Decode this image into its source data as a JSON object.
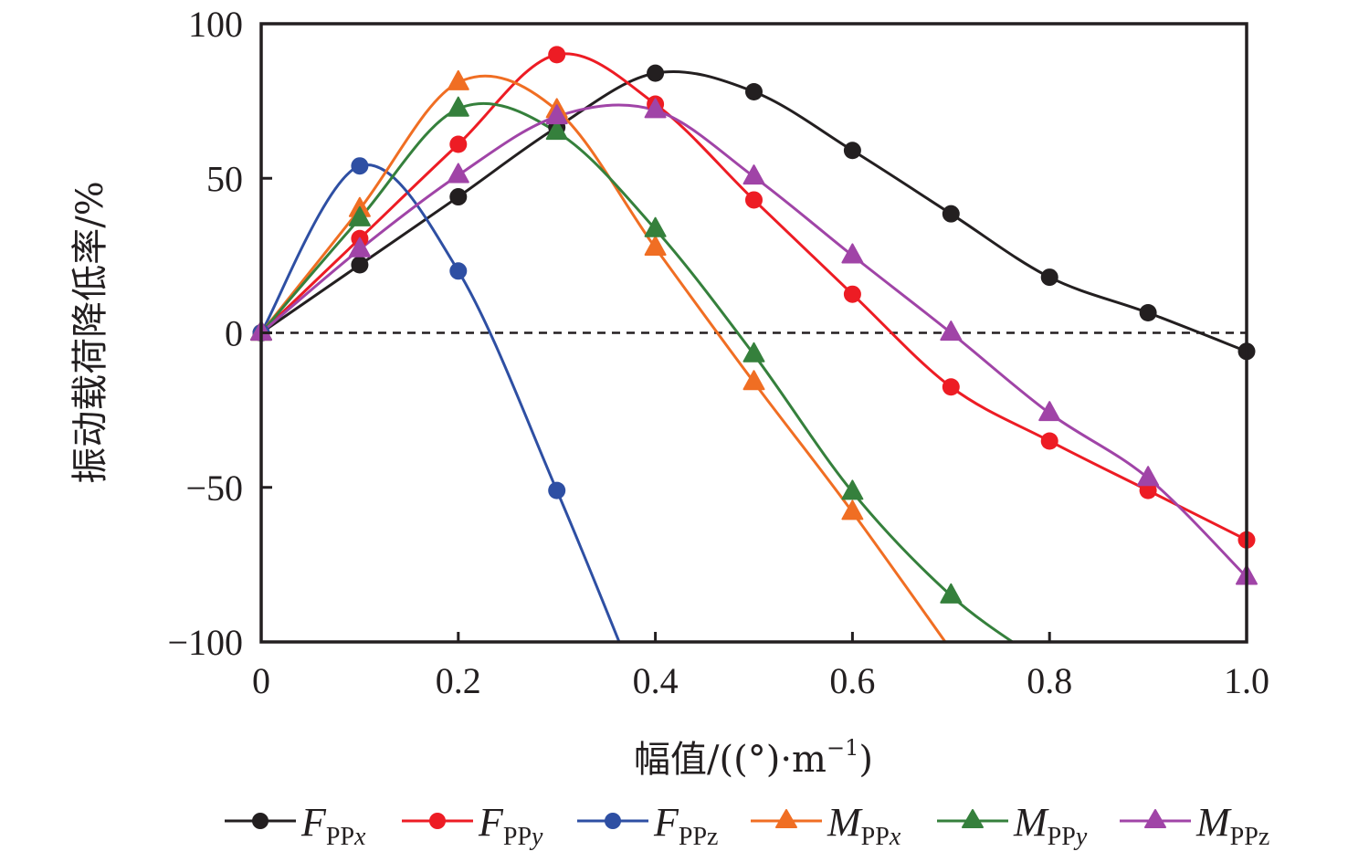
{
  "chart_data": {
    "type": "line",
    "title": "",
    "xlabel": "幅值/((°)·m⁻¹)",
    "xlabel_parts": {
      "text": "幅值/((°)·m",
      "sup": "−1",
      "close": ")"
    },
    "ylabel": "振动载荷降低率/%",
    "xlim": [
      0,
      1.0
    ],
    "ylim": [
      -100,
      100
    ],
    "xticks": [
      0,
      0.2,
      0.4,
      0.6,
      0.8,
      1.0
    ],
    "xtick_labels": [
      "0",
      "0.2",
      "0.4",
      "0.6",
      "0.8",
      "1.0"
    ],
    "yticks": [
      -100,
      -50,
      0,
      50,
      100
    ],
    "ytick_labels": [
      "−100",
      "−50",
      "0",
      "50",
      "100"
    ],
    "grid": false,
    "reference_line": {
      "y": 0,
      "style": "dashed",
      "color": "#231f20"
    },
    "legend_position": "bottom",
    "smooth": true,
    "series": [
      {
        "name": "F_PPx",
        "label_main": "F",
        "label_sub": "PP",
        "label_axis": "x",
        "axis_italic": true,
        "color": "#231f20",
        "marker": "circle",
        "x": [
          0,
          0.1,
          0.2,
          0.3,
          0.4,
          0.5,
          0.6,
          0.7,
          0.8,
          0.9,
          1.0
        ],
        "y": [
          0,
          22,
          44,
          66.5,
          84,
          78,
          59,
          38.5,
          18,
          6.5,
          -6
        ]
      },
      {
        "name": "F_PPy",
        "label_main": "F",
        "label_sub": "PP",
        "label_axis": "y",
        "axis_italic": true,
        "color": "#ed1c24",
        "marker": "circle",
        "x": [
          0,
          0.1,
          0.2,
          0.3,
          0.4,
          0.5,
          0.6,
          0.7,
          0.8,
          0.9,
          1.0
        ],
        "y": [
          0,
          30.5,
          61,
          90,
          74,
          43,
          12.5,
          -17.5,
          -35,
          -51,
          -67
        ]
      },
      {
        "name": "F_PPz",
        "label_main": "F",
        "label_sub": "PP",
        "label_axis": "z",
        "axis_italic": false,
        "color": "#2e4fa3",
        "marker": "circle",
        "x": [
          0,
          0.1,
          0.2,
          0.3
        ],
        "y": [
          0,
          54,
          20,
          -51
        ],
        "exits_bottom_at_x": 0.363
      },
      {
        "name": "M_PPx",
        "label_main": "M",
        "label_sub": "PP",
        "label_axis": "x",
        "axis_italic": true,
        "color": "#f06e23",
        "marker": "triangle",
        "x": [
          0,
          0.1,
          0.2,
          0.3,
          0.4,
          0.5,
          0.6
        ],
        "y": [
          0,
          40,
          81,
          72,
          27.5,
          -16,
          -58
        ],
        "exits_bottom_at_x": 0.694
      },
      {
        "name": "M_PPy",
        "label_main": "M",
        "label_sub": "PP",
        "label_axis": "y",
        "axis_italic": true,
        "color": "#35803c",
        "marker": "triangle",
        "x": [
          0,
          0.1,
          0.2,
          0.3,
          0.4,
          0.5,
          0.6,
          0.7
        ],
        "y": [
          0,
          37,
          72.5,
          65,
          33.5,
          -7,
          -51.5,
          -85
        ],
        "exits_bottom_at_x": 0.764
      },
      {
        "name": "M_PPz",
        "label_main": "M",
        "label_sub": "PP",
        "label_axis": "z",
        "axis_italic": false,
        "color": "#a044a7",
        "marker": "triangle",
        "x": [
          0,
          0.1,
          0.2,
          0.3,
          0.4,
          0.5,
          0.6,
          0.7,
          0.8,
          0.9,
          1.0
        ],
        "y": [
          0,
          27,
          51,
          70,
          72,
          50.5,
          25,
          0,
          -26,
          -47,
          -79
        ]
      }
    ]
  }
}
